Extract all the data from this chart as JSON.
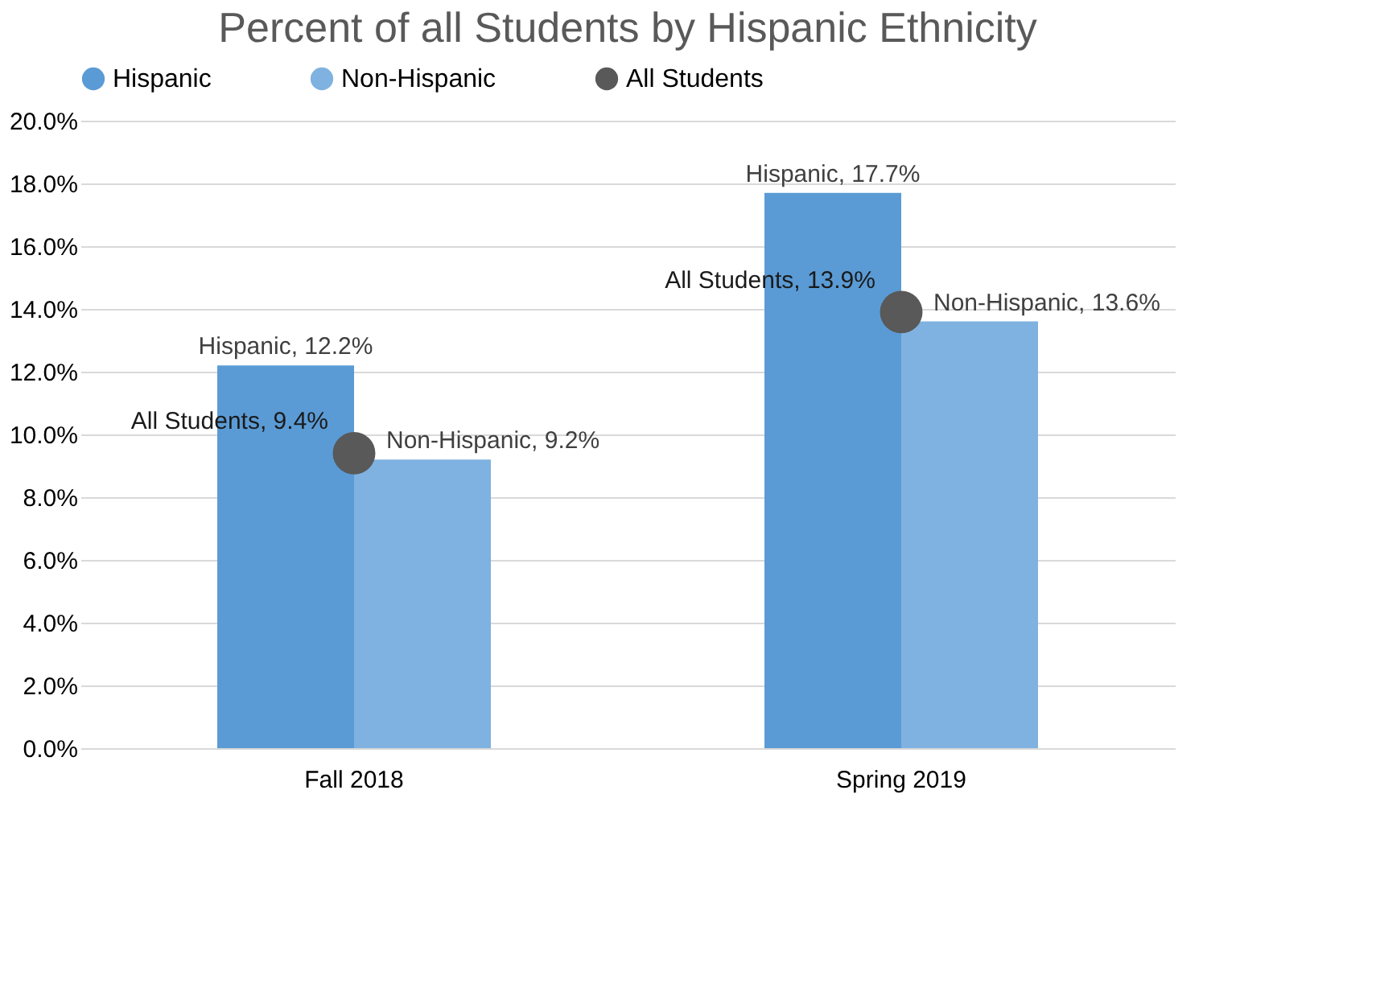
{
  "chart_data": {
    "type": "bar",
    "title": "Percent of all Students by Hispanic Ethnicity",
    "categories": [
      "Fall 2018",
      "Spring 2019"
    ],
    "series": [
      {
        "name": "Hispanic",
        "color": "#5b9bd5",
        "values": [
          12.2,
          17.7
        ],
        "value_labels": [
          "Hispanic, 12.2%",
          "Hispanic, 17.7%"
        ]
      },
      {
        "name": "Non-Hispanic",
        "color": "#7fb2e0",
        "values": [
          9.2,
          13.6
        ],
        "value_labels": [
          "Non-Hispanic, 9.2%",
          "Non-Hispanic, 13.6%"
        ]
      },
      {
        "name": "All Students",
        "type": "scatter",
        "marker": "circle",
        "color": "#595959",
        "values": [
          9.4,
          13.9
        ],
        "value_labels": [
          "All Students, 9.4%",
          "All Students, 13.9%"
        ]
      }
    ],
    "ylim": [
      0,
      20
    ],
    "yticks": [
      {
        "value": 0,
        "label": "0.0%"
      },
      {
        "value": 2,
        "label": "2.0%"
      },
      {
        "value": 4,
        "label": "4.0%"
      },
      {
        "value": 6,
        "label": "6.0%"
      },
      {
        "value": 8,
        "label": "8.0%"
      },
      {
        "value": 10,
        "label": "10.0%"
      },
      {
        "value": 12,
        "label": "12.0%"
      },
      {
        "value": 14,
        "label": "14.0%"
      },
      {
        "value": 16,
        "label": "16.0%"
      },
      {
        "value": 18,
        "label": "18.0%"
      },
      {
        "value": 20,
        "label": "20.0%"
      }
    ],
    "grid": "y",
    "legend": "top"
  }
}
